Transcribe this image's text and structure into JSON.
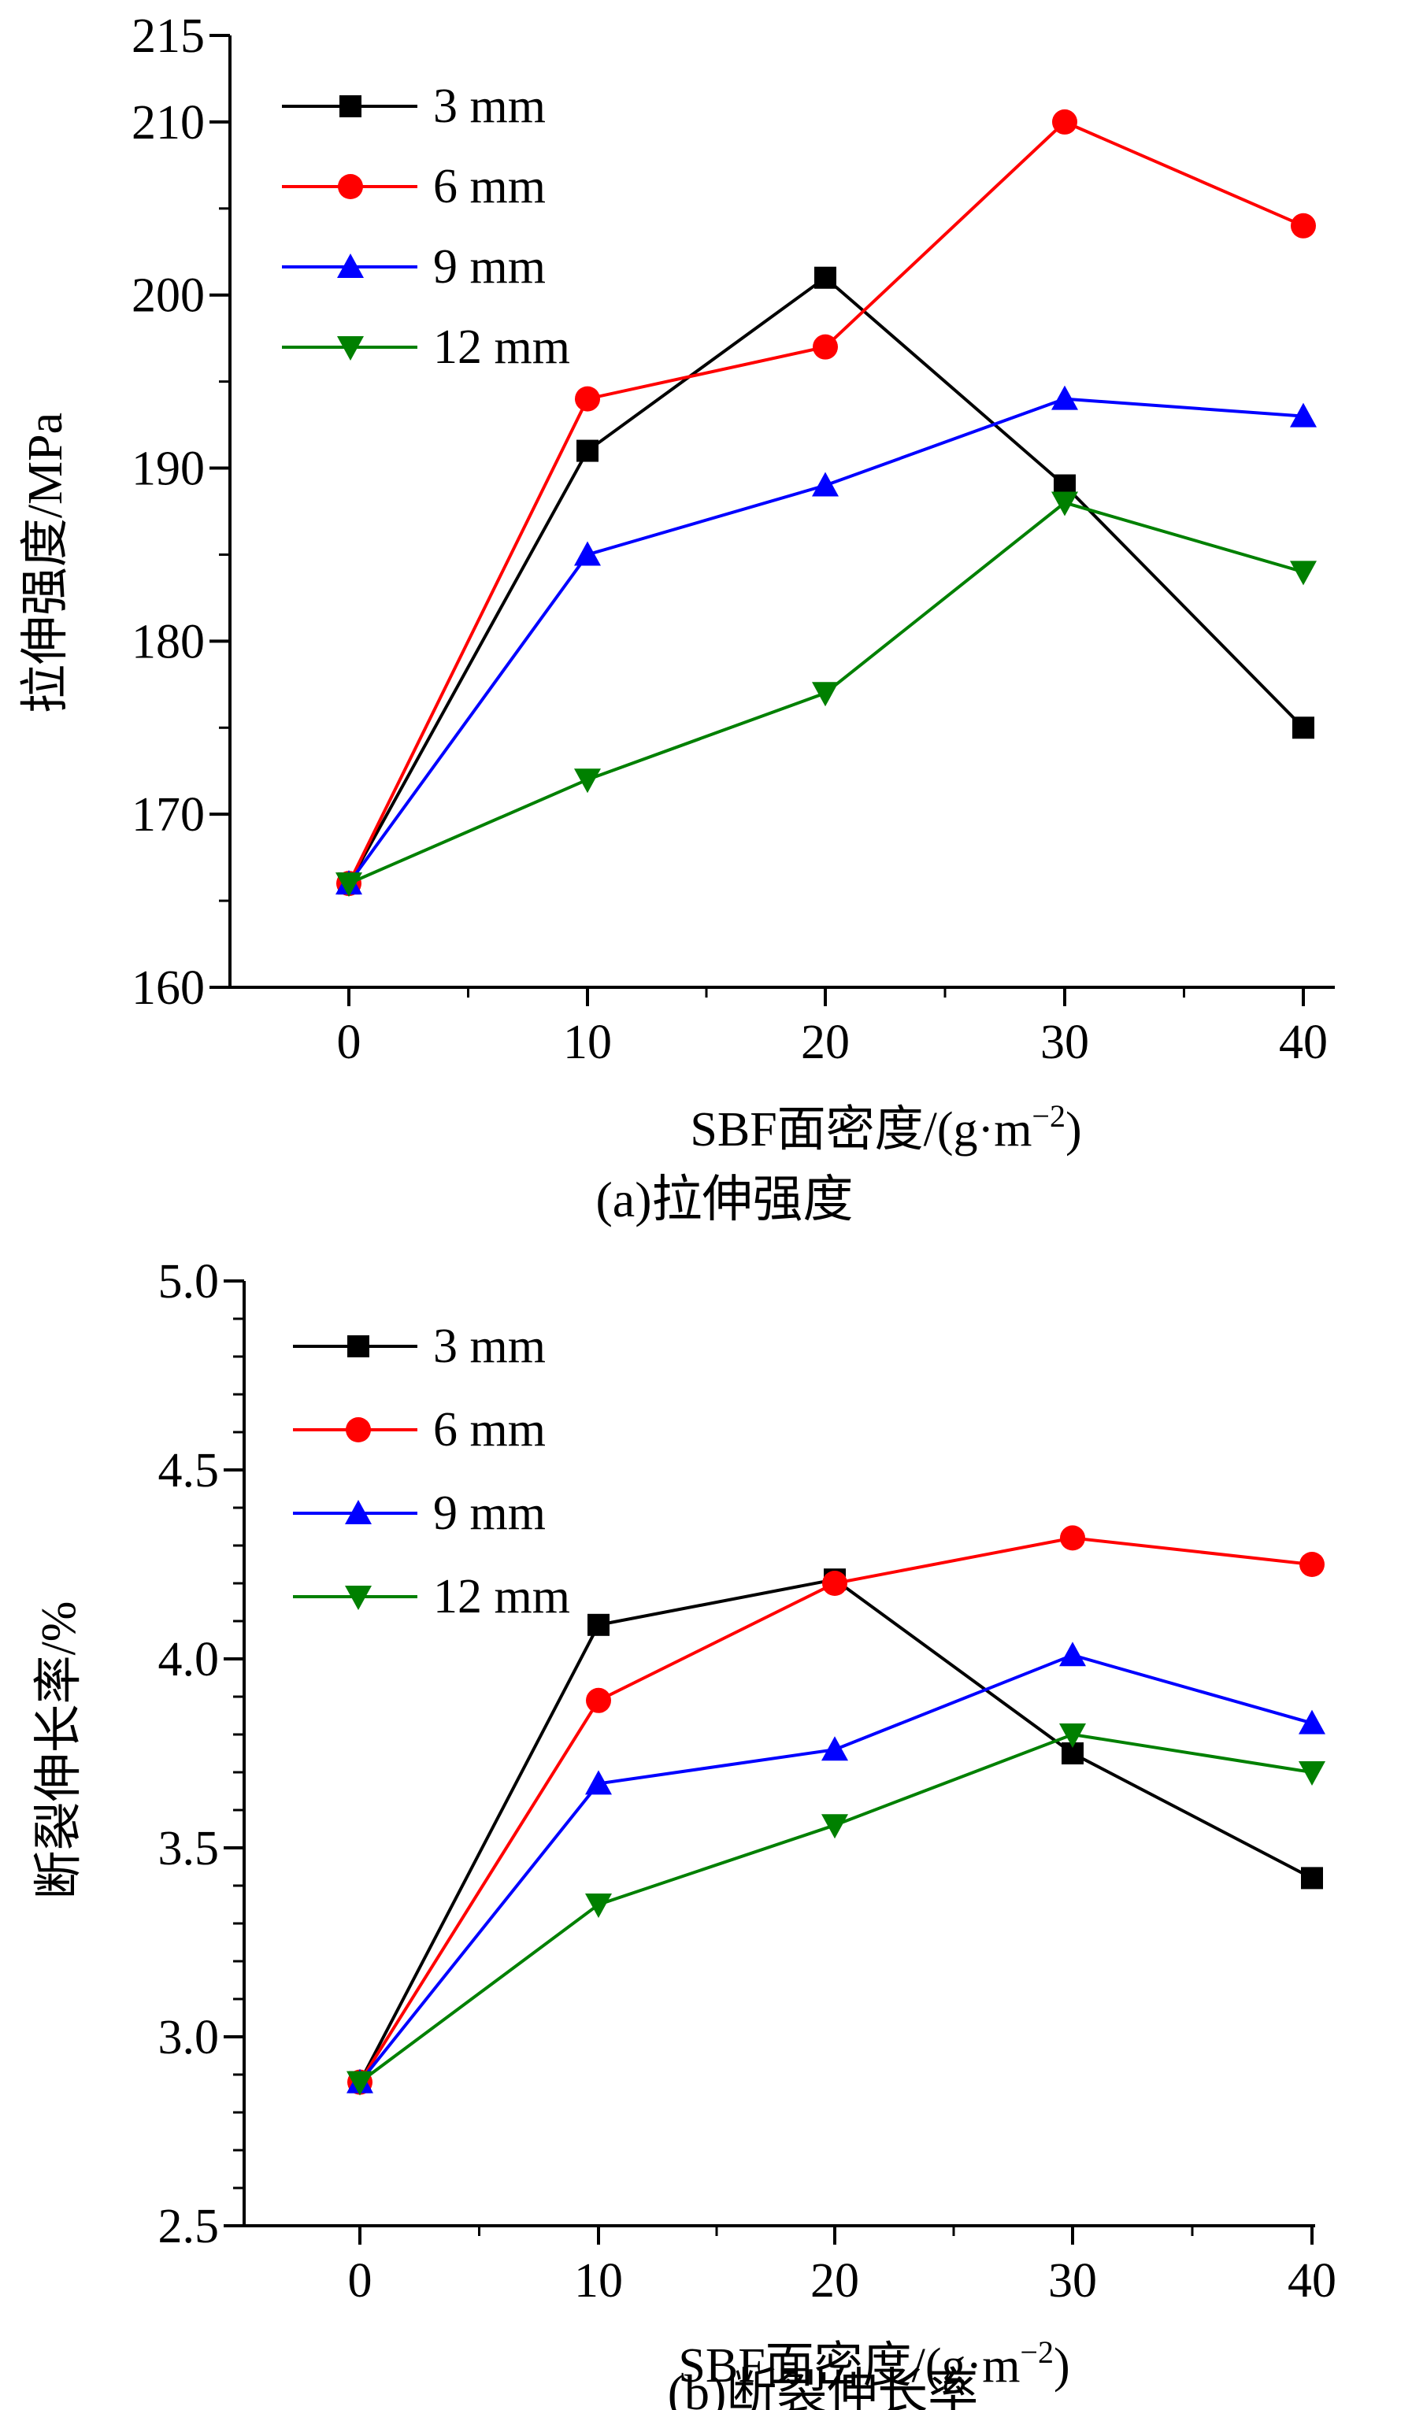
{
  "chart_data": [
    {
      "type": "line",
      "caption": "(a)拉伸强度",
      "xlabel": "SBF面密度/(g·m",
      "xlabel_sup": "−2",
      "xlabel_close": ")",
      "ylabel": "拉伸强度/MPa",
      "x": [
        0,
        10,
        20,
        30,
        40
      ],
      "xlim": [
        -5,
        42
      ],
      "ylim": [
        160,
        215
      ],
      "yticks": [
        160,
        170,
        180,
        190,
        200,
        210,
        215
      ],
      "ytick_labels": [
        "160",
        "170",
        "180",
        "190",
        "200",
        "210",
        "215"
      ],
      "xtick_labels": [
        "0",
        "10",
        "20",
        "30",
        "40"
      ],
      "legend_position": "top-left",
      "series": [
        {
          "name": "3 mm",
          "color": "#000000",
          "marker": "square",
          "values": [
            166,
            191,
            201,
            189,
            175
          ]
        },
        {
          "name": "6 mm",
          "color": "#ff0000",
          "marker": "circle",
          "values": [
            166,
            194,
            197,
            210,
            204
          ]
        },
        {
          "name": "9 mm",
          "color": "#0000ff",
          "marker": "triangle-up",
          "values": [
            166,
            185,
            189,
            194,
            193
          ]
        },
        {
          "name": "12 mm",
          "color": "#008000",
          "marker": "triangle-down",
          "values": [
            166,
            172,
            177,
            188,
            184
          ]
        }
      ]
    },
    {
      "type": "line",
      "caption": "(b)断裂伸长率",
      "xlabel": "SBF面密度/(g·m",
      "xlabel_sup": "−2",
      "xlabel_close": ")",
      "ylabel": "断裂伸长率/%",
      "x": [
        0,
        10,
        20,
        30,
        40
      ],
      "xlim": [
        -5,
        40.3
      ],
      "ylim": [
        2.5,
        5.0
      ],
      "yticks": [
        2.5,
        3.0,
        3.5,
        4.0,
        4.5,
        5.0
      ],
      "ytick_labels": [
        "2.5",
        "3.0",
        "3.5",
        "4.0",
        "4.5",
        "5.0"
      ],
      "xtick_labels": [
        "0",
        "10",
        "20",
        "30",
        "40"
      ],
      "legend_position": "top-left",
      "series": [
        {
          "name": "3 mm",
          "color": "#000000",
          "marker": "square",
          "values": [
            2.88,
            4.09,
            4.21,
            3.75,
            3.42
          ]
        },
        {
          "name": "6 mm",
          "color": "#ff0000",
          "marker": "circle",
          "values": [
            2.88,
            3.89,
            4.2,
            4.32,
            4.25
          ]
        },
        {
          "name": "9 mm",
          "color": "#0000ff",
          "marker": "triangle-up",
          "values": [
            2.88,
            3.67,
            3.76,
            4.01,
            3.83
          ]
        },
        {
          "name": "12 mm",
          "color": "#008000",
          "marker": "triangle-down",
          "values": [
            2.88,
            3.35,
            3.56,
            3.8,
            3.7
          ]
        }
      ]
    }
  ]
}
